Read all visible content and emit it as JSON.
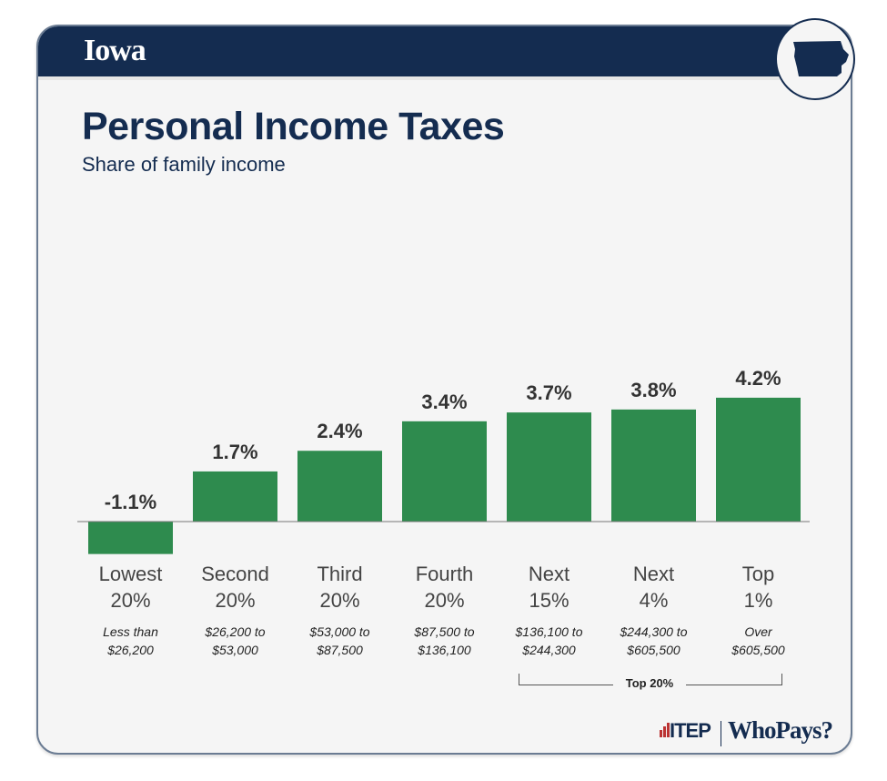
{
  "header": {
    "state": "Iowa"
  },
  "colors": {
    "header": "#142c50",
    "bar": "#2e8b4e"
  },
  "chart_data": {
    "type": "bar",
    "title": "Personal Income Taxes",
    "subtitle": "Share of family income",
    "categories": [
      {
        "group": "Lowest",
        "pct": "20%",
        "range1": "Less than",
        "range2": "$26,200"
      },
      {
        "group": "Second",
        "pct": "20%",
        "range1": "$26,200 to",
        "range2": "$53,000"
      },
      {
        "group": "Third",
        "pct": "20%",
        "range1": "$53,000 to",
        "range2": "$87,500"
      },
      {
        "group": "Fourth",
        "pct": "20%",
        "range1": "$87,500 to",
        "range2": "$136,100"
      },
      {
        "group": "Next",
        "pct": "15%",
        "range1": "$136,100 to",
        "range2": "$244,300"
      },
      {
        "group": "Next",
        "pct": "4%",
        "range1": "$244,300 to",
        "range2": "$605,500"
      },
      {
        "group": "Top",
        "pct": "1%",
        "range1": "Over",
        "range2": "$605,500"
      }
    ],
    "values": [
      -1.1,
      1.7,
      2.4,
      3.4,
      3.7,
      3.8,
      4.2
    ],
    "data_labels": [
      "-1.1%",
      "1.7%",
      "2.4%",
      "3.4%",
      "3.7%",
      "3.8%",
      "4.2%"
    ],
    "bracket_label": "Top 20%",
    "grid": false
  },
  "footer": {
    "logo1": "ITEP",
    "logo2": "WhoPays?"
  }
}
